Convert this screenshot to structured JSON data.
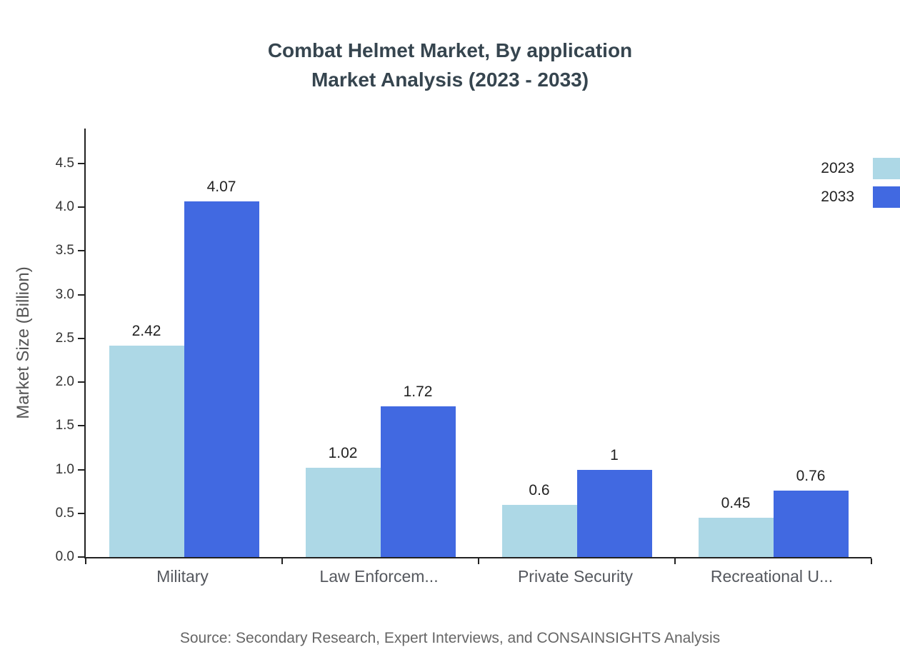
{
  "title": {
    "line1": "Combat Helmet Market, By application",
    "line2": "Market Analysis (2023 - 2033)"
  },
  "source": "Source: Secondary Research, Expert Interviews, and CONSAINSIGHTS Analysis",
  "chart_data": {
    "type": "bar",
    "title": "Combat Helmet Market, By application Market Analysis (2023 - 2033)",
    "categories": [
      "Military",
      "Law Enforcem...",
      "Private Security",
      "Recreational U..."
    ],
    "series": [
      {
        "name": "2023",
        "color": "#ADD8E6",
        "values": [
          2.42,
          1.02,
          0.6,
          0.45
        ]
      },
      {
        "name": "2033",
        "color": "#4169E1",
        "values": [
          4.07,
          1.72,
          1,
          0.76
        ]
      }
    ],
    "xlabel": "",
    "ylabel": "Market Size (Billion)",
    "yticks": [
      "0.0",
      "0.5",
      "1.0",
      "1.5",
      "2.0",
      "2.5",
      "3.0",
      "3.5",
      "4.0",
      "4.5"
    ],
    "ylim": [
      0,
      4.9
    ],
    "grid": false,
    "legend_position": "top-right"
  }
}
